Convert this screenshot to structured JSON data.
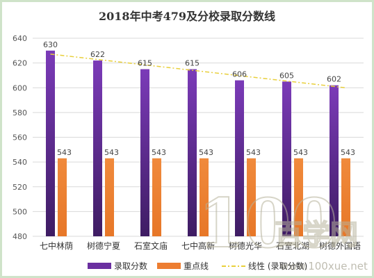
{
  "chart_data": {
    "type": "bar",
    "title": "2018年中考479及分校录取分数线",
    "categories": [
      "七中林荫",
      "树德宁夏",
      "石室文庙",
      "七中高新",
      "树德光华",
      "石室北湖",
      "树德外国语"
    ],
    "series": [
      {
        "name": "录取分数",
        "values": [
          630,
          622,
          615,
          615,
          606,
          605,
          602
        ],
        "color": "#6a2fa0"
      },
      {
        "name": "重点线",
        "values": [
          543,
          543,
          543,
          543,
          543,
          543,
          543
        ],
        "color": "#ed7d31"
      }
    ],
    "trendline": {
      "name": "线性 (录取分数)",
      "color": "#e8cf3a"
    },
    "ylim": [
      480,
      640
    ],
    "yticks": [
      480,
      500,
      520,
      540,
      560,
      580,
      600,
      620,
      640
    ],
    "grid": true,
    "legend": "bottom"
  },
  "watermark": {
    "logo_text": "100",
    "brand_text": "百学网",
    "url": "www.100xue.net"
  }
}
